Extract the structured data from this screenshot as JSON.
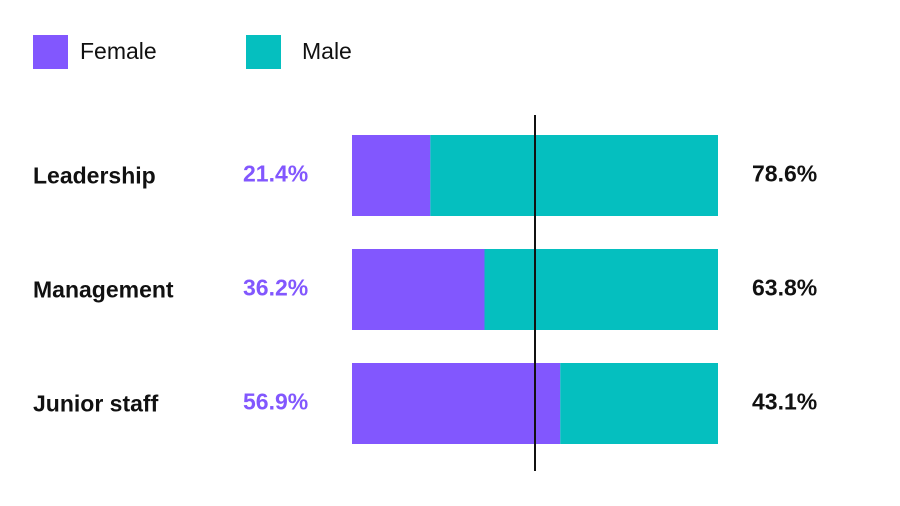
{
  "chart_data": {
    "type": "bar",
    "orientation": "horizontal",
    "stacked": true,
    "categories": [
      "Leadership",
      "Management",
      "Junior staff"
    ],
    "series": [
      {
        "name": "Female",
        "color": "#8257fe",
        "values": [
          21.4,
          36.2,
          56.9
        ],
        "value_labels": [
          "21.4%",
          "36.2%",
          "56.9%"
        ]
      },
      {
        "name": "Male",
        "color": "#05bfbf",
        "values": [
          78.6,
          63.8,
          43.1
        ],
        "value_labels": [
          "78.6%",
          "63.8%",
          "43.1%"
        ]
      }
    ],
    "xlim": [
      0,
      100
    ],
    "reference_x": 50,
    "reference_color": "#111111",
    "legend": "top-left"
  }
}
